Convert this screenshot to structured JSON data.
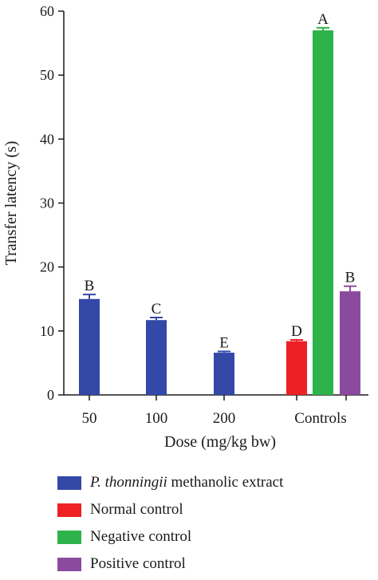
{
  "chart_data": {
    "type": "bar",
    "xlabel": "Dose (mg/kg bw)",
    "ylabel": "Transfer latency (s)",
    "ylim": [
      0,
      60
    ],
    "yticks": [
      0,
      10,
      20,
      30,
      40,
      50,
      60
    ],
    "grid": false,
    "legend_position": "bottom",
    "categories": [
      "50",
      "100",
      "200",
      "Controls"
    ],
    "bars": [
      {
        "category": "50",
        "series": "P. thonningii methanolic extract",
        "value": 15.0,
        "error": 0.7,
        "label": "B"
      },
      {
        "category": "100",
        "series": "P. thonningii methanolic extract",
        "value": 11.7,
        "error": 0.4,
        "label": "C"
      },
      {
        "category": "200",
        "series": "P. thonningii methanolic extract",
        "value": 6.6,
        "error": 0.2,
        "label": "E"
      },
      {
        "category": "Controls",
        "series": "Normal control",
        "value": 8.4,
        "error": 0.2,
        "label": "D"
      },
      {
        "category": "Controls",
        "series": "Negative control",
        "value": 57.0,
        "error": 0.4,
        "label": "A"
      },
      {
        "category": "Controls",
        "series": "Positive control",
        "value": 16.2,
        "error": 0.8,
        "label": "B"
      }
    ],
    "series": [
      {
        "name": "P. thonningii methanolic extract",
        "name_italic": "P. thonningii",
        "name_rest": " methanolic extract",
        "color": "#3448a8"
      },
      {
        "name": "Normal control",
        "color": "#ee2024"
      },
      {
        "name": "Negative control",
        "color": "#2db34a"
      },
      {
        "name": "Positive control",
        "color": "#8b4a9e"
      }
    ]
  }
}
